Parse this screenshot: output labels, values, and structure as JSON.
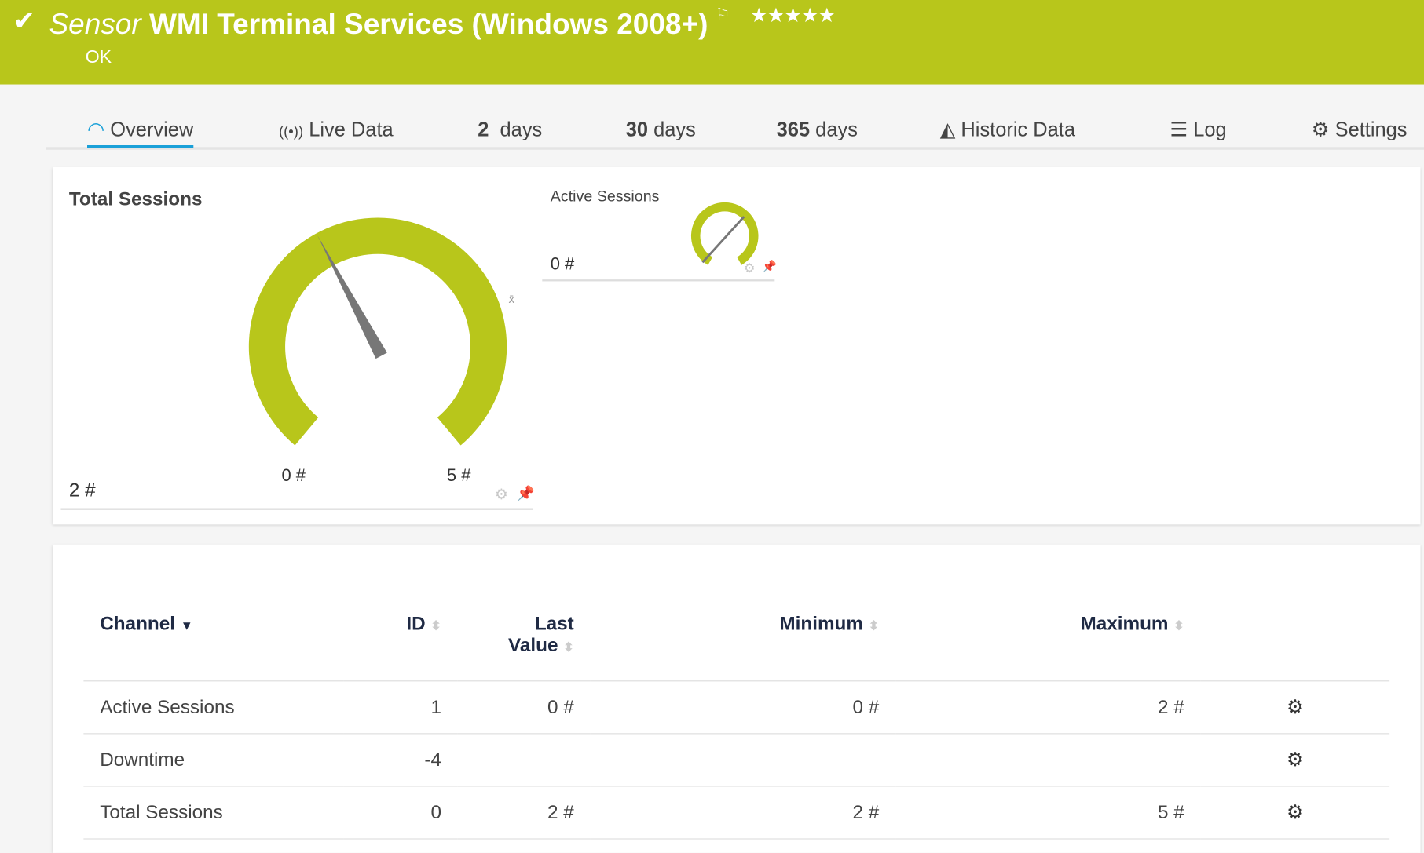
{
  "header": {
    "prefix": "Sensor",
    "title": "WMI Terminal Services (Windows 2008+)",
    "status": "OK",
    "priority_stars": 5,
    "color": "#b8c61b"
  },
  "tabs": [
    {
      "label": "Overview",
      "icon": "gauge-icon"
    },
    {
      "label": "Live Data",
      "icon": "broadcast-icon"
    },
    {
      "num": "2",
      "label": "days"
    },
    {
      "num": "30",
      "label": "days"
    },
    {
      "num": "365",
      "label": "days"
    },
    {
      "label": "Historic Data",
      "icon": "area-chart-icon"
    },
    {
      "label": "Log",
      "icon": "list-icon"
    },
    {
      "label": "Settings",
      "icon": "gear-icon"
    }
  ],
  "gauges": {
    "total": {
      "title": "Total Sessions",
      "value": "2 #",
      "min_label": "0 #",
      "max_label": "5 #",
      "avg_marker": "x̄",
      "value_num": 2,
      "min": 0,
      "max": 5
    },
    "active": {
      "title": "Active Sessions",
      "value": "0 #",
      "value_num": 0,
      "min": 0,
      "max": 2
    }
  },
  "table": {
    "headers": {
      "channel": "Channel",
      "id": "ID",
      "last_1": "Last",
      "last_2": "Value",
      "minimum": "Minimum",
      "maximum": "Maximum"
    },
    "rows": [
      {
        "channel": "Active Sessions",
        "id": "1",
        "last": "0 #",
        "minimum": "0 #",
        "maximum": "2 #"
      },
      {
        "channel": "Downtime",
        "id": "-4",
        "last": "",
        "minimum": "",
        "maximum": ""
      },
      {
        "channel": "Total Sessions",
        "id": "0",
        "last": "2 #",
        "minimum": "2 #",
        "maximum": "5 #"
      }
    ]
  }
}
